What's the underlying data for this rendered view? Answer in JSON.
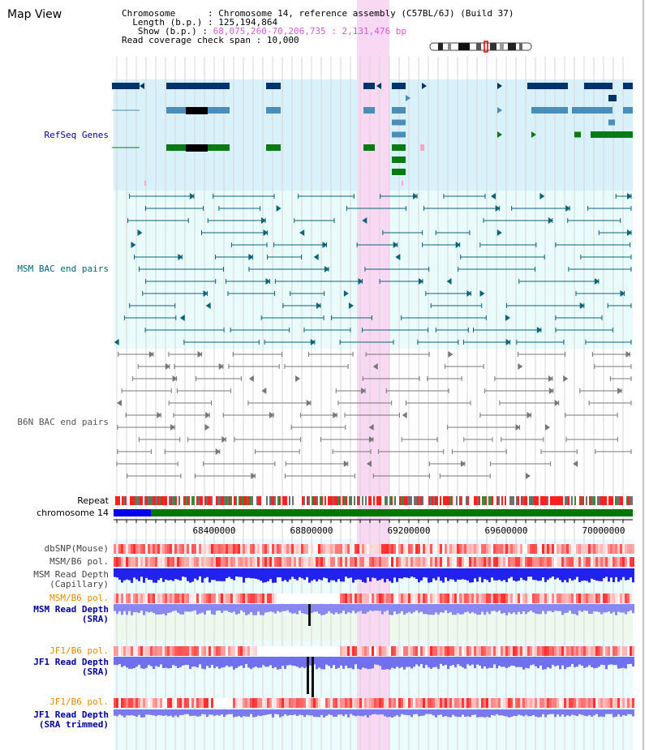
{
  "title": "Map View",
  "info": {
    "chromosome_label": "Chromosome",
    "chromosome_value": "Chromosome 14, reference assembly (C57BL/6J) (Build 37)",
    "length_label": "Length (b.p.)",
    "length_value": "125,194,864",
    "show_label": "Show (b.p.)",
    "show_value": "68,075,260-70,206,735 : 2,131,476 bp",
    "coverage_label": "Read coverage check span",
    "coverage_value": "10,000"
  },
  "tracks": {
    "refseq": "RefSeq Genes",
    "msm_bac": "MSM BAC end pairs",
    "b6n_bac": "B6N BAC end pairs",
    "repeat": "Repeat",
    "chromosome": "chromosome 14",
    "dbsnp": "dbSNP(Mouse)",
    "msm_b6_pol": "MSM/B6 pol.",
    "msm_depth_cap_1": "MSM Read Depth",
    "msm_depth_cap_2": "(Capillary)",
    "msm_b6_pol_2": "MSM/B6 pol.",
    "msm_depth_sra_1": "MSM Read Depth",
    "msm_depth_sra_2": "(SRA)",
    "jf1_pol": "JF1/B6 pol.",
    "jf1_depth_1": "JF1 Read Depth",
    "jf1_depth_2": "(SRA)",
    "jf1_pol_2": "JF1/B6 pol.",
    "jf1_trim_1": "JF1 Read Depth",
    "jf1_trim_2": "(SRA trimmed)"
  },
  "axis": {
    "ticks": [
      "68400000",
      "68800000",
      "69200000",
      "69600000",
      "70000000"
    ]
  },
  "colors": {
    "refseq_bg": "#d9f1fb",
    "bac_bg": "#e9fbfb",
    "highlight": "#f8d8f3",
    "gene_dark": "#003366",
    "gene_mid": "#4a8db8",
    "gene_green": "#0a7a14",
    "bac_line": "#0b6478",
    "b6n_line": "#777777",
    "chrom_green": "#007700",
    "chrom_blue": "#0000ee",
    "label_navy": "#000099",
    "label_teal": "#006677",
    "label_orange": "#e68a00"
  }
}
